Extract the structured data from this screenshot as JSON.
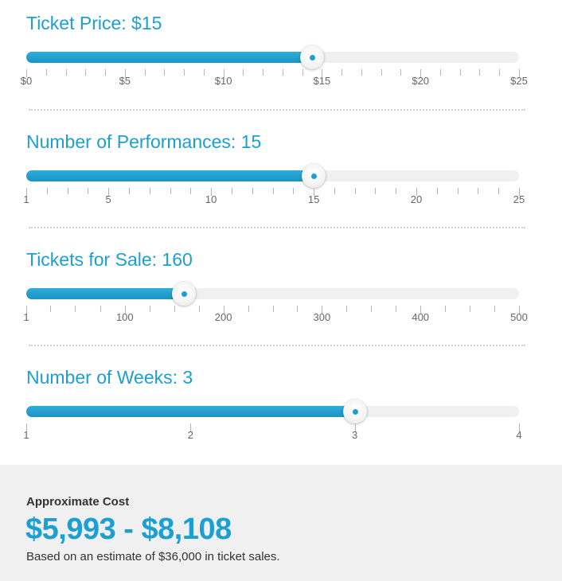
{
  "sliders": [
    {
      "title": "Ticket Price: $15",
      "min": 0,
      "max": 25,
      "value": 14.5,
      "major_ticks": [
        0,
        5,
        10,
        15,
        20,
        25
      ],
      "minor_ticks": [
        1,
        2,
        3,
        4,
        6,
        7,
        8,
        9,
        11,
        12,
        13,
        14,
        16,
        17,
        18,
        19,
        21,
        22,
        23,
        24
      ],
      "labels": [
        "$0",
        "$5",
        "$10",
        "$15",
        "$20",
        "$25"
      ]
    },
    {
      "title": "Number of Performances: 15",
      "min": 1,
      "max": 25,
      "value": 15,
      "major_ticks": [
        1,
        5,
        10,
        15,
        20,
        25
      ],
      "minor_ticks": [
        2,
        3,
        4,
        6,
        7,
        8,
        9,
        11,
        12,
        13,
        14,
        16,
        17,
        18,
        19,
        21,
        22,
        23,
        24
      ],
      "labels": [
        "1",
        "5",
        "10",
        "15",
        "20",
        "25"
      ]
    },
    {
      "title": "Tickets for Sale: 160",
      "min": 1,
      "max": 500,
      "value": 160,
      "major_ticks": [
        1,
        100,
        200,
        300,
        400,
        500
      ],
      "minor_ticks": [
        25,
        50,
        75,
        125,
        150,
        175,
        225,
        250,
        275,
        325,
        350,
        375,
        425,
        450,
        475
      ],
      "labels": [
        "1",
        "100",
        "200",
        "300",
        "400",
        "500"
      ],
      "tick_scale": "piecewise"
    },
    {
      "title": "Number of Weeks: 3",
      "min": 1,
      "max": 4,
      "value": 3,
      "major_ticks": [
        1,
        2,
        3,
        4
      ],
      "minor_ticks": [],
      "labels": [
        "1",
        "2",
        "3",
        "4"
      ]
    }
  ],
  "cost": {
    "label": "Approximate Cost",
    "range": "$5,993 - $8,108",
    "note": "Based on an estimate of $36,000 in ticket sales."
  },
  "colors": {
    "accent": "#1c9fd2",
    "track": "#f0f0f0",
    "panel": "#f1f0f0"
  }
}
